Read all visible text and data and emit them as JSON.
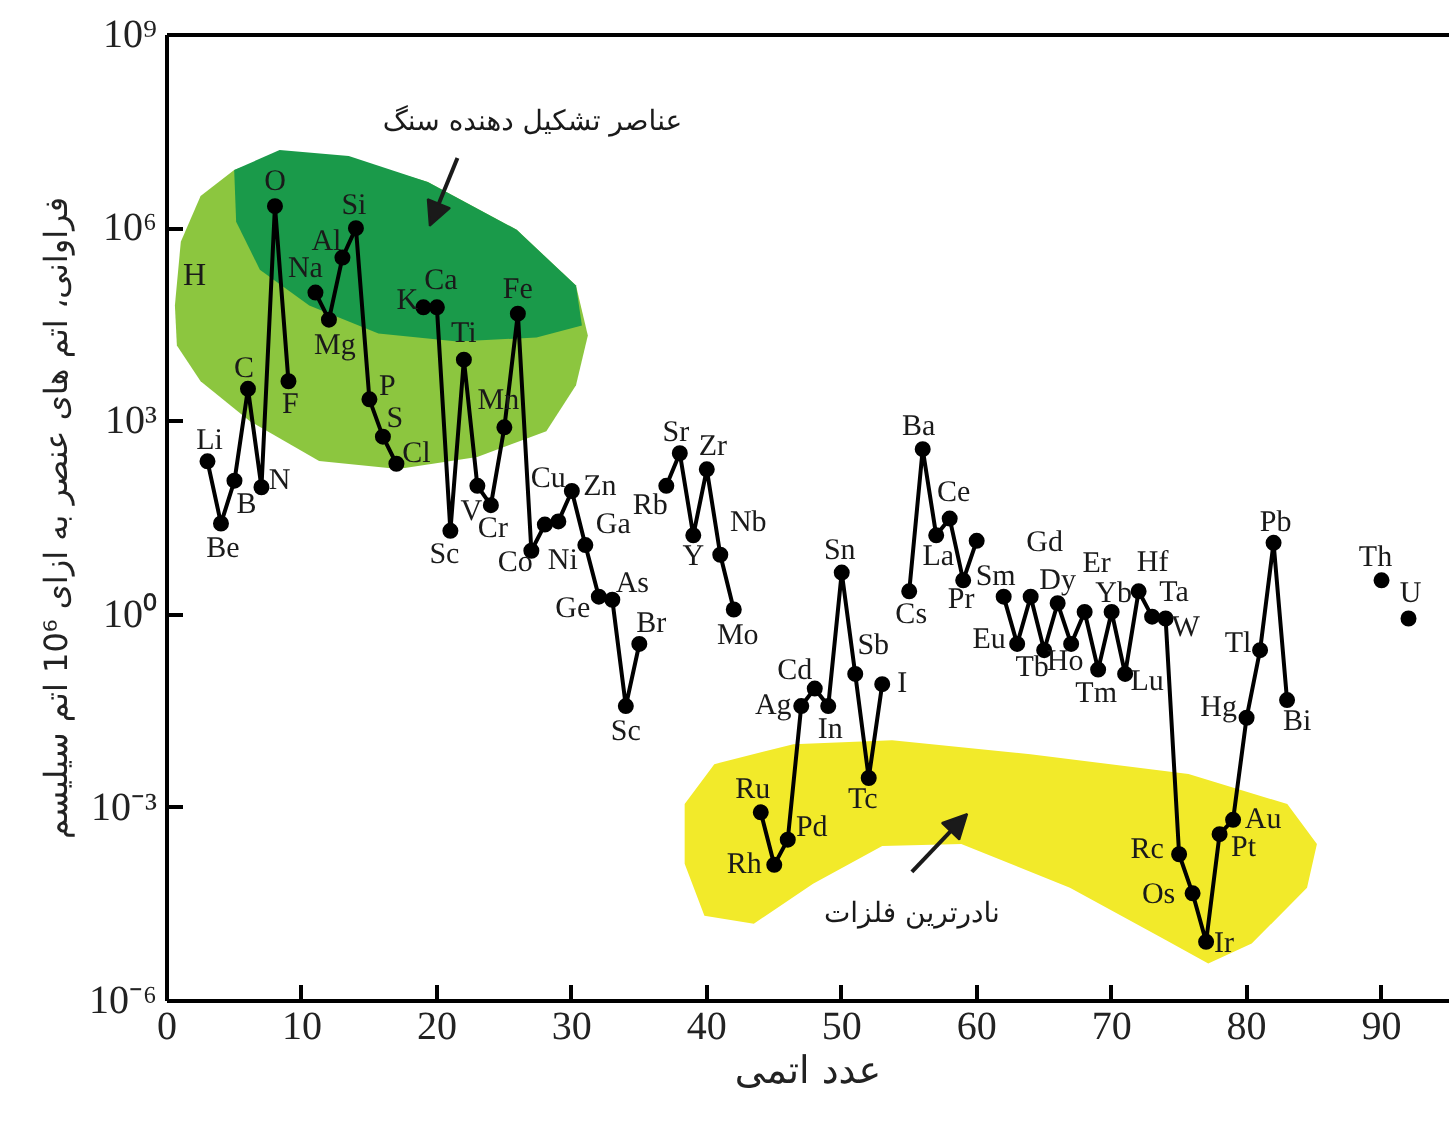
{
  "chart_data": {
    "type": "line",
    "xlabel": "عدد اتمی",
    "ylabel": "فراوانی، اتم های عنصر به ازای 10⁶ اتم سیلیسم",
    "log": "y",
    "grid": false,
    "marker": "circle",
    "line_style": "solid",
    "xlim": [
      0,
      95
    ],
    "xticks": [
      0,
      10,
      20,
      30,
      40,
      50,
      60,
      70,
      80,
      90
    ],
    "ylim": [
      1e-06,
      1000000000.0
    ],
    "yticks": [
      {
        "value": 1e-06,
        "label": "10⁻⁶"
      },
      {
        "value": 0.001,
        "label": "10⁻³"
      },
      {
        "value": 1,
        "label": "10⁰"
      },
      {
        "value": 1000.0,
        "label": "10³"
      },
      {
        "value": 1000000.0,
        "label": "10⁶"
      },
      {
        "value": 1000000000.0,
        "label": "10⁹"
      }
    ],
    "series": [
      {
        "color": "#000000",
        "x": [
          3,
          4,
          5,
          6,
          7,
          8,
          9,
          10,
          11,
          12,
          13,
          14,
          15,
          16,
          17,
          18,
          19,
          20,
          21,
          22,
          23,
          24,
          25,
          26,
          27,
          28,
          29,
          30,
          31,
          32,
          33,
          34,
          35,
          36,
          37,
          38,
          39,
          40,
          41,
          42,
          43,
          44,
          45,
          46,
          47,
          48,
          49,
          50,
          51,
          52,
          53,
          54,
          55,
          56,
          57,
          58,
          59,
          60,
          61,
          62,
          63,
          64,
          65,
          66,
          67,
          68,
          69,
          70,
          71,
          72,
          73,
          74,
          75,
          76,
          77,
          78,
          79,
          80,
          81,
          82,
          83,
          84,
          85,
          86,
          87,
          88,
          89,
          90,
          91,
          92
        ],
        "values": [
          240,
          26,
          120,
          3200,
          95,
          2200000.0,
          4200,
          null,
          100000.0,
          38000.0,
          350000.0,
          1000000.0,
          2200,
          580,
          220,
          null,
          59000.0,
          59000.0,
          20,
          9100,
          100,
          50,
          810,
          47000.0,
          9.8,
          25,
          28,
          83,
          12,
          1.9,
          1.7,
          0.038,
          0.35,
          null,
          100,
          320,
          17,
          180,
          8.5,
          1.2,
          null,
          0.00085,
          0.00013,
          0.00032,
          0.038,
          0.071,
          0.038,
          4.5,
          0.12,
          0.0029,
          0.083,
          null,
          2.3,
          370,
          17,
          31,
          3.4,
          14,
          null,
          1.9,
          0.35,
          1.9,
          0.28,
          1.5,
          0.35,
          1.1,
          0.14,
          1.1,
          0.12,
          2.3,
          0.93,
          0.87,
          0.00019,
          4.7e-05,
          8.3e-06,
          0.00039,
          0.00065,
          0.025,
          0.28,
          13,
          0.047,
          null,
          null,
          null,
          null,
          null,
          null,
          3.4,
          null,
          0.87
        ]
      }
    ],
    "annotations": [
      "عناصر تشکیل دهنده سنگ",
      "نادرترین فلزات",
      "H",
      {
        "text": "Li",
        "x": 3,
        "y": 240
      },
      {
        "text": "Be",
        "x": 4,
        "y": 26
      },
      {
        "text": "B",
        "x": 5,
        "y": 120
      },
      {
        "text": "C",
        "x": 6,
        "y": 3200
      },
      {
        "text": "N",
        "x": 7,
        "y": 95
      },
      {
        "text": "O",
        "x": 8,
        "y": 2200000.0
      },
      {
        "text": "F",
        "x": 9,
        "y": 4200
      },
      {
        "text": "Na",
        "x": 11,
        "y": 100000.0
      },
      {
        "text": "Mg",
        "x": 12,
        "y": 38000.0
      },
      {
        "text": "Al",
        "x": 13,
        "y": 350000.0
      },
      {
        "text": "Si",
        "x": 14,
        "y": 1000000.0
      },
      {
        "text": "P",
        "x": 15,
        "y": 2200
      },
      {
        "text": "S",
        "x": 16,
        "y": 580
      },
      {
        "text": "Cl",
        "x": 17,
        "y": 220
      },
      {
        "text": "K",
        "x": 19,
        "y": 59000.0
      },
      {
        "text": "Ca",
        "x": 20,
        "y": 59000.0
      },
      {
        "text": "Sc",
        "x": 21,
        "y": 20
      },
      {
        "text": "Ti",
        "x": 22,
        "y": 9100
      },
      {
        "text": "V",
        "x": 23,
        "y": 100
      },
      {
        "text": "Cr",
        "x": 24,
        "y": 50
      },
      {
        "text": "Mn",
        "x": 25,
        "y": 810
      },
      {
        "text": "Fe",
        "x": 26,
        "y": 47000.0
      },
      {
        "text": "Co",
        "x": 27,
        "y": 9.8
      },
      {
        "text": "Ni",
        "x": 28,
        "y": 25
      },
      {
        "text": "Cu",
        "x": 29,
        "y": 28
      },
      {
        "text": "Zn",
        "x": 30,
        "y": 83
      },
      {
        "text": "Ga",
        "x": 31,
        "y": 12
      },
      {
        "text": "Ge",
        "x": 32,
        "y": 1.9
      },
      {
        "text": "As",
        "x": 33,
        "y": 1.7
      },
      {
        "text": "Sc",
        "x": 34,
        "y": 0.038
      },
      {
        "text": "Br",
        "x": 35,
        "y": 0.35
      },
      {
        "text": "Rb",
        "x": 37,
        "y": 100
      },
      {
        "text": "Sr",
        "x": 38,
        "y": 320
      },
      {
        "text": "Y",
        "x": 39,
        "y": 17
      },
      {
        "text": "Zr",
        "x": 40,
        "y": 180
      },
      {
        "text": "Nb",
        "x": 41,
        "y": 8.5
      },
      {
        "text": "Mo",
        "x": 42,
        "y": 1.2
      },
      {
        "text": "Ru",
        "x": 44,
        "y": 0.00085
      },
      {
        "text": "Rh",
        "x": 45,
        "y": 0.00013
      },
      {
        "text": "Pd",
        "x": 46,
        "y": 0.00032
      },
      {
        "text": "Ag",
        "x": 47,
        "y": 0.038
      },
      {
        "text": "Cd",
        "x": 48,
        "y": 0.071
      },
      {
        "text": "In",
        "x": 49,
        "y": 0.038
      },
      {
        "text": "Sn",
        "x": 50,
        "y": 4.5
      },
      {
        "text": "Sb",
        "x": 51,
        "y": 0.12
      },
      {
        "text": "Tc",
        "x": 52,
        "y": 0.0029
      },
      {
        "text": "I",
        "x": 53,
        "y": 0.083
      },
      {
        "text": "Cs",
        "x": 55,
        "y": 2.3
      },
      {
        "text": "Ba",
        "x": 56,
        "y": 370
      },
      {
        "text": "La",
        "x": 57,
        "y": 17
      },
      {
        "text": "Ce",
        "x": 58,
        "y": 31
      },
      {
        "text": "Pr",
        "x": 59,
        "y": 3.4
      },
      {
        "text": "Sm",
        "x": 62,
        "y": 1.9
      },
      {
        "text": "Eu",
        "x": 63,
        "y": 0.35
      },
      {
        "text": "Gd",
        "x": 64,
        "y": 1.9
      },
      {
        "text": "Tb",
        "x": 65,
        "y": 0.28
      },
      {
        "text": "Dy",
        "x": 66,
        "y": 1.5
      },
      {
        "text": "Ho",
        "x": 67,
        "y": 0.35
      },
      {
        "text": "Er",
        "x": 68,
        "y": 1.1
      },
      {
        "text": "Tm",
        "x": 69,
        "y": 0.14
      },
      {
        "text": "Yb",
        "x": 70,
        "y": 1.1
      },
      {
        "text": "Lu",
        "x": 71,
        "y": 0.12
      },
      {
        "text": "Hf",
        "x": 72,
        "y": 2.3
      },
      {
        "text": "Ta",
        "x": 73,
        "y": 0.93
      },
      {
        "text": "W",
        "x": 74,
        "y": 0.87
      },
      {
        "text": "Rc",
        "x": 75,
        "y": 0.00019
      },
      {
        "text": "Os",
        "x": 76,
        "y": 4.7e-05
      },
      {
        "text": "Ir",
        "x": 77,
        "y": 8.3e-06
      },
      {
        "text": "Pt",
        "x": 78,
        "y": 0.00039
      },
      {
        "text": "Au",
        "x": 79,
        "y": 0.00065
      },
      {
        "text": "Hg",
        "x": 80,
        "y": 0.025
      },
      {
        "text": "Tl",
        "x": 81,
        "y": 0.28
      },
      {
        "text": "Pb",
        "x": 82,
        "y": 13
      },
      {
        "text": "Bi",
        "x": 83,
        "y": 0.047
      },
      {
        "text": "Th",
        "x": 90,
        "y": 3.4
      },
      {
        "text": "U",
        "x": 92,
        "y": 0.87
      }
    ]
  }
}
